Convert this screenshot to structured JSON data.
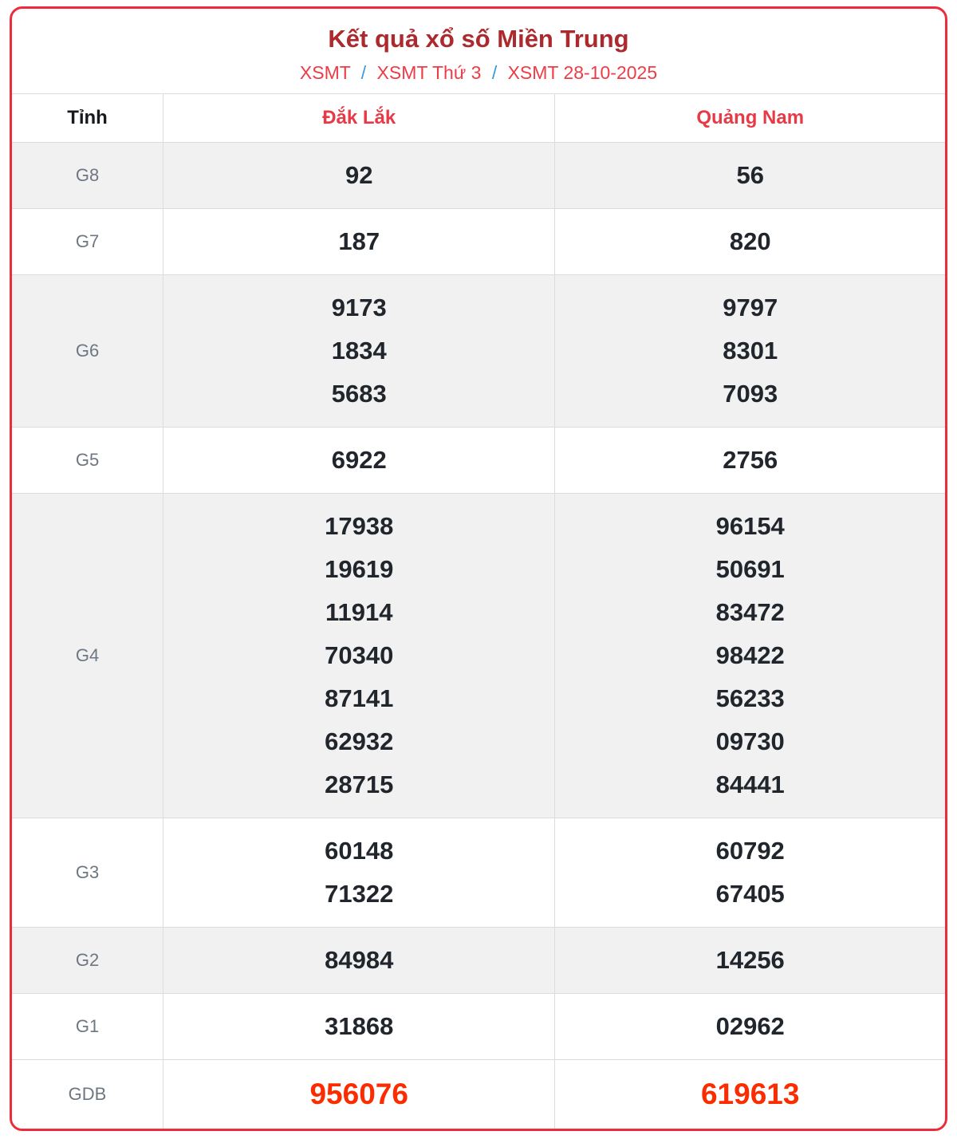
{
  "card": {
    "title": "Kết quả xổ số Miền Trung",
    "breadcrumb": {
      "items": [
        "XSMT",
        "XSMT Thứ 3",
        "XSMT 28-10-2025"
      ],
      "separator": "/"
    }
  },
  "table": {
    "corner_header": "Tỉnh",
    "province_headers": [
      "Đắk Lắk",
      "Quảng Nam"
    ],
    "rows": [
      {
        "prize": "G8",
        "striped": true,
        "special": false,
        "values": [
          [
            "92"
          ],
          [
            "56"
          ]
        ]
      },
      {
        "prize": "G7",
        "striped": false,
        "special": false,
        "values": [
          [
            "187"
          ],
          [
            "820"
          ]
        ]
      },
      {
        "prize": "G6",
        "striped": true,
        "special": false,
        "values": [
          [
            "9173",
            "1834",
            "5683"
          ],
          [
            "9797",
            "8301",
            "7093"
          ]
        ]
      },
      {
        "prize": "G5",
        "striped": false,
        "special": false,
        "values": [
          [
            "6922"
          ],
          [
            "2756"
          ]
        ]
      },
      {
        "prize": "G4",
        "striped": true,
        "special": false,
        "values": [
          [
            "17938",
            "19619",
            "11914",
            "70340",
            "87141",
            "62932",
            "28715"
          ],
          [
            "96154",
            "50691",
            "83472",
            "98422",
            "56233",
            "09730",
            "84441"
          ]
        ]
      },
      {
        "prize": "G3",
        "striped": false,
        "special": false,
        "values": [
          [
            "60148",
            "71322"
          ],
          [
            "60792",
            "67405"
          ]
        ]
      },
      {
        "prize": "G2",
        "striped": true,
        "special": false,
        "values": [
          [
            "84984"
          ],
          [
            "14256"
          ]
        ]
      },
      {
        "prize": "G1",
        "striped": false,
        "special": false,
        "values": [
          [
            "31868"
          ],
          [
            "02962"
          ]
        ]
      },
      {
        "prize": "GDB",
        "striped": false,
        "special": true,
        "values": [
          [
            "956076"
          ],
          [
            "619613"
          ]
        ]
      }
    ]
  },
  "colors": {
    "card_border": "#ed2b3a",
    "title": "#ac2a2e",
    "breadcrumb_link": "#ee3c46",
    "breadcrumb_separator": "#3a9ad9",
    "province_header": "#e83a46",
    "corner_header": "#16191d",
    "prize_label": "#6e7781",
    "number": "#21262d",
    "special_number": "#fb2c00",
    "stripe_background": "#f1f1f2",
    "grid_line": "#dcdcde"
  }
}
